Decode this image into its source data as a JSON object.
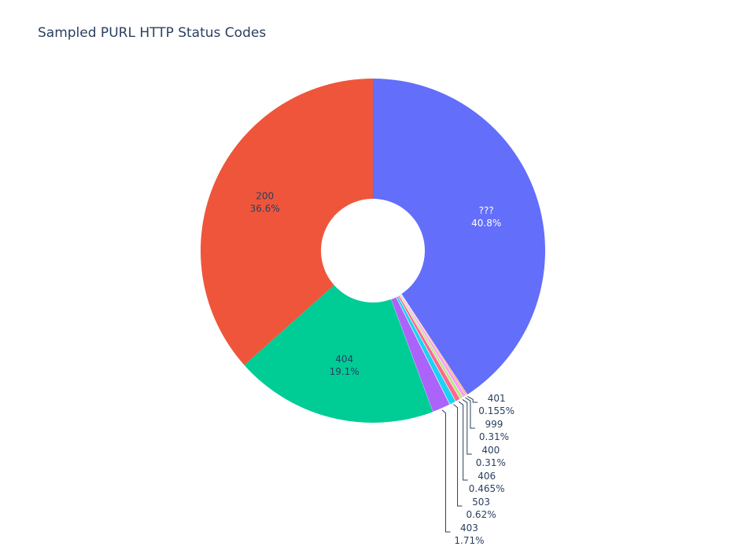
{
  "chart_data": {
    "type": "pie",
    "hole": true,
    "title": "Sampled PURL HTTP Status Codes",
    "slices": [
      {
        "label": "???",
        "value_label": "40.8%",
        "value": 40.8,
        "color": "#636efa",
        "text_color": "#ffffff"
      },
      {
        "label": "401",
        "value_label": "0.155%",
        "value": 0.155,
        "color": "#ffa15a",
        "text_color": "#2a3f5f"
      },
      {
        "label": "999",
        "value_label": "0.31%",
        "value": 0.31,
        "color": "#ff97ff",
        "text_color": "#2a3f5f"
      },
      {
        "label": "400",
        "value_label": "0.31%",
        "value": 0.31,
        "color": "#b6e880",
        "text_color": "#2a3f5f"
      },
      {
        "label": "406",
        "value_label": "0.465%",
        "value": 0.465,
        "color": "#ff6692",
        "text_color": "#2a3f5f"
      },
      {
        "label": "503",
        "value_label": "0.62%",
        "value": 0.62,
        "color": "#19d3f3",
        "text_color": "#2a3f5f"
      },
      {
        "label": "403",
        "value_label": "1.71%",
        "value": 1.71,
        "color": "#ab63fa",
        "text_color": "#2a3f5f"
      },
      {
        "label": "404",
        "value_label": "19.1%",
        "value": 19.1,
        "color": "#00cc96",
        "text_color": "#2a3f5f"
      },
      {
        "label": "200",
        "value_label": "36.6%",
        "value": 36.6,
        "color": "#ef553b",
        "text_color": "#2a3f5f"
      }
    ]
  }
}
